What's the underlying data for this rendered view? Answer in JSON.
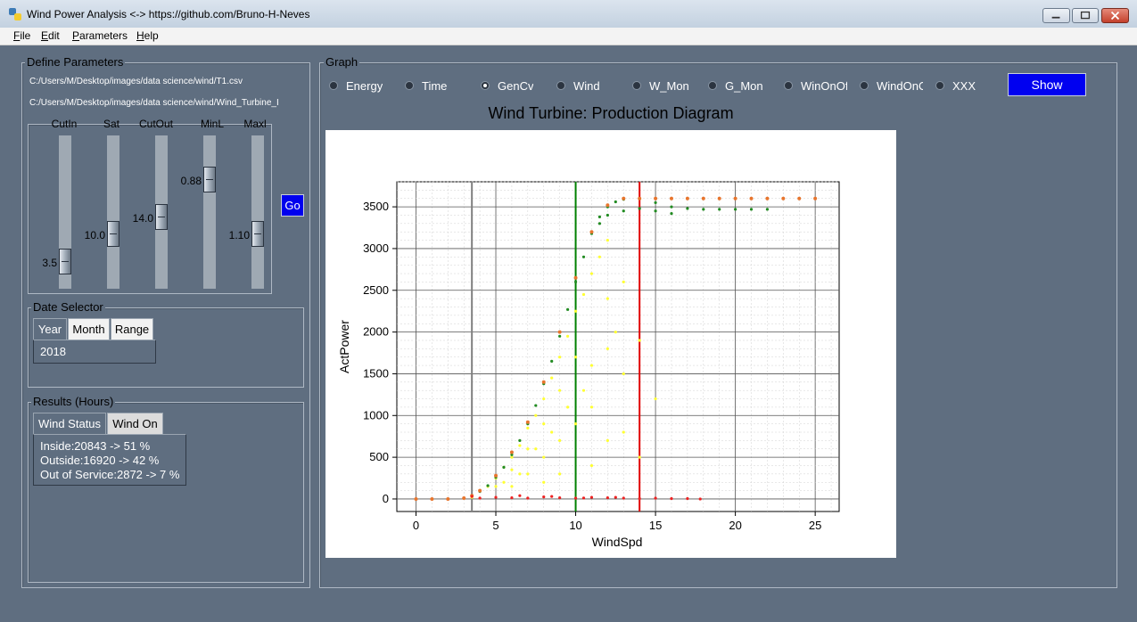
{
  "window": {
    "title": "Wind Power Analysis <-> https://github.com/Bruno-H-Neves"
  },
  "menu": [
    "File",
    "Edit",
    "Parameters",
    "Help"
  ],
  "define_parameters": {
    "label": "Define Parameters",
    "file1": "C:/Users/M/Desktop/images/data science/wind/T1.csv",
    "file2": "C:/Users/M/Desktop/images/data science/wind/Wind_Turbine_I",
    "sliders": [
      {
        "label": "CutIn",
        "value": "3.5"
      },
      {
        "label": "Sat",
        "value": "10.0"
      },
      {
        "label": "CutOut",
        "value": "14.0"
      },
      {
        "label": "MinL",
        "value": "0.88"
      },
      {
        "label": "Maxl",
        "value": "1.10"
      }
    ],
    "go_label": "Go"
  },
  "date_selector": {
    "label": "Date Selector",
    "tabs": [
      "Year",
      "Month",
      "Range"
    ],
    "active_tab": "Year",
    "value": "2018"
  },
  "results": {
    "label": "Results (Hours)",
    "tabs": [
      "Wind Status",
      "Wind On"
    ],
    "active_tab": "Wind Status",
    "lines": [
      "Inside:20843 -> 51 %",
      "Outside:16920 -> 42 %",
      "Out of Service:2872 -> 7 %"
    ]
  },
  "graph": {
    "label": "Graph",
    "options": [
      "Energy",
      "Time",
      "GenCv",
      "Wind",
      "W_Mon",
      "G_Mon",
      "WinOnOf",
      "WindOnO",
      "XXX"
    ],
    "selected": "GenCv",
    "show_label": "Show"
  },
  "chart_data": {
    "type": "scatter",
    "title": "Wind Turbine: Production Diagram",
    "xlabel": "WindSpd",
    "ylabel": "ActPower",
    "xlim": [
      -1.2,
      26.5
    ],
    "ylim": [
      -150,
      3800
    ],
    "xticks": [
      0,
      5,
      10,
      15,
      20,
      25
    ],
    "yticks": [
      0,
      500,
      1000,
      1500,
      2000,
      2500,
      3000,
      3500
    ],
    "grid": true,
    "series": [
      {
        "color": "#ffff33",
        "points": [
          [
            3.5,
            20
          ],
          [
            4,
            100
          ],
          [
            4.5,
            150
          ],
          [
            5,
            250
          ],
          [
            5.5,
            380
          ],
          [
            6,
            500
          ],
          [
            6.5,
            640
          ],
          [
            7,
            850
          ],
          [
            7.5,
            1000
          ],
          [
            8,
            1200
          ],
          [
            8.5,
            1450
          ],
          [
            9,
            1700
          ],
          [
            9.5,
            1950
          ],
          [
            10,
            2250
          ],
          [
            10.5,
            2450
          ],
          [
            11,
            2700
          ],
          [
            11.5,
            2900
          ],
          [
            12,
            3100
          ],
          [
            6,
            150
          ],
          [
            7,
            300
          ],
          [
            8,
            500
          ],
          [
            9,
            700
          ],
          [
            10,
            900
          ],
          [
            11,
            1100
          ],
          [
            12,
            700
          ],
          [
            9,
            300
          ],
          [
            8,
            200
          ],
          [
            13,
            800
          ],
          [
            14,
            500
          ],
          [
            11,
            1600
          ],
          [
            10.5,
            1300
          ],
          [
            9.5,
            1100
          ],
          [
            12.5,
            2000
          ],
          [
            13,
            2600
          ],
          [
            12,
            2400
          ],
          [
            15,
            1200
          ],
          [
            8.5,
            800
          ],
          [
            7.5,
            600
          ],
          [
            6.5,
            300
          ],
          [
            5.5,
            200
          ],
          [
            11,
            400
          ],
          [
            13,
            1500
          ],
          [
            14,
            1900
          ],
          [
            12,
            1800
          ],
          [
            10,
            1700
          ],
          [
            9,
            1300
          ],
          [
            8,
            900
          ],
          [
            7,
            600
          ],
          [
            6,
            350
          ],
          [
            5,
            150
          ]
        ]
      },
      {
        "color": "#228b22",
        "points": [
          [
            3.5,
            40
          ],
          [
            4,
            90
          ],
          [
            4.5,
            160
          ],
          [
            5,
            260
          ],
          [
            5.5,
            380
          ],
          [
            6,
            530
          ],
          [
            6.5,
            700
          ],
          [
            7,
            900
          ],
          [
            7.5,
            1120
          ],
          [
            8,
            1380
          ],
          [
            8.5,
            1650
          ],
          [
            9,
            1950
          ],
          [
            9.5,
            2270
          ],
          [
            10,
            2600
          ],
          [
            10.5,
            2900
          ],
          [
            11,
            3180
          ],
          [
            11.5,
            3380
          ],
          [
            12,
            3500
          ],
          [
            12.5,
            3560
          ],
          [
            13,
            3590
          ],
          [
            14,
            3600
          ],
          [
            15,
            3550
          ],
          [
            16,
            3500
          ],
          [
            17,
            3480
          ],
          [
            18,
            3470
          ],
          [
            19,
            3470
          ],
          [
            20,
            3470
          ],
          [
            21,
            3470
          ],
          [
            22,
            3470
          ],
          [
            13,
            3450
          ],
          [
            14,
            3480
          ],
          [
            15,
            3450
          ],
          [
            16,
            3420
          ],
          [
            12,
            3400
          ],
          [
            11.5,
            3300
          ]
        ]
      },
      {
        "color": "#e8752d",
        "points": [
          [
            0,
            0
          ],
          [
            1,
            0
          ],
          [
            2,
            0
          ],
          [
            3,
            10
          ],
          [
            3.5,
            40
          ],
          [
            4,
            100
          ],
          [
            5,
            280
          ],
          [
            6,
            560
          ],
          [
            7,
            920
          ],
          [
            8,
            1400
          ],
          [
            9,
            2000
          ],
          [
            10,
            2650
          ],
          [
            11,
            3200
          ],
          [
            12,
            3520
          ],
          [
            13,
            3600
          ],
          [
            14,
            3600
          ],
          [
            15,
            3600
          ],
          [
            16,
            3600
          ],
          [
            17,
            3600
          ],
          [
            18,
            3600
          ],
          [
            19,
            3600
          ],
          [
            20,
            3600
          ],
          [
            21,
            3600
          ],
          [
            22,
            3600
          ],
          [
            23,
            3600
          ],
          [
            24,
            3600
          ],
          [
            25,
            3600
          ]
        ]
      },
      {
        "color": "#ee2222",
        "points": [
          [
            3.5,
            30
          ],
          [
            5,
            20
          ],
          [
            6,
            15
          ],
          [
            7,
            10
          ],
          [
            8,
            25
          ],
          [
            9,
            15
          ],
          [
            10,
            10
          ],
          [
            11,
            20
          ],
          [
            12,
            15
          ],
          [
            13,
            10
          ],
          [
            14,
            5
          ],
          [
            15,
            10
          ],
          [
            16,
            5
          ],
          [
            17,
            5
          ],
          [
            17.8,
            0
          ],
          [
            4,
            10
          ],
          [
            6.5,
            40
          ],
          [
            8.5,
            30
          ],
          [
            10.5,
            12
          ],
          [
            12.5,
            20
          ]
        ]
      }
    ],
    "vlines": [
      {
        "x": 3.5,
        "color": "#808080"
      },
      {
        "x": 10.0,
        "color": "#008000"
      },
      {
        "x": 14.0,
        "color": "#e00000"
      }
    ]
  }
}
